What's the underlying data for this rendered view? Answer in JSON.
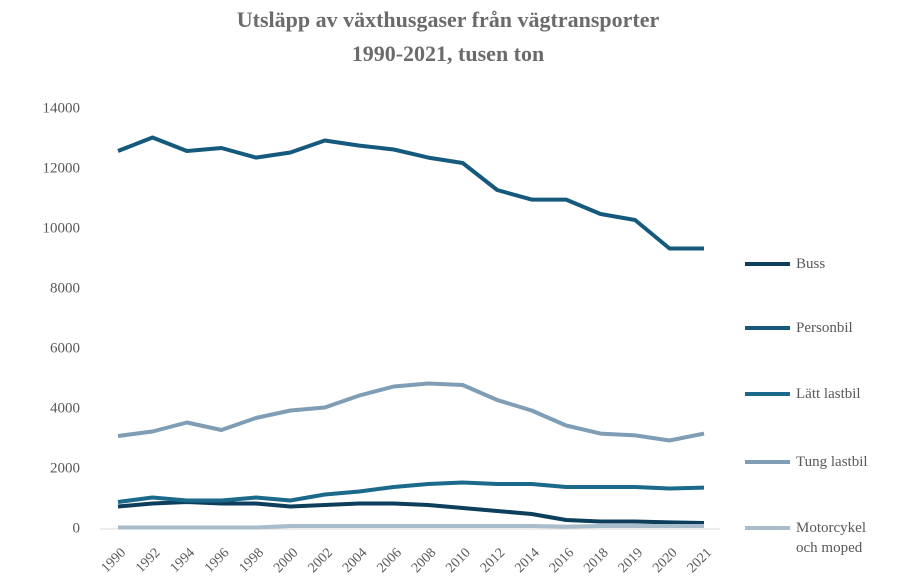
{
  "chart_data": {
    "type": "line",
    "title": "Utsläpp av växthusgaser från vägtransporter",
    "subtitle": "1990-2021, tusen ton",
    "categories": [
      "1990",
      "1992",
      "1994",
      "1996",
      "1998",
      "2000",
      "2002",
      "2004",
      "2006",
      "2008",
      "2010",
      "2012",
      "2014",
      "2016",
      "2018",
      "2019",
      "2020",
      "2021"
    ],
    "series": [
      {
        "name": "Buss",
        "color": "#0d3f5c",
        "values": [
          750,
          850,
          900,
          850,
          850,
          750,
          800,
          850,
          850,
          800,
          700,
          600,
          500,
          300,
          250,
          250,
          220,
          200
        ]
      },
      {
        "name": "Personbil",
        "color": "#155a7c",
        "values": [
          12600,
          13050,
          12600,
          12700,
          12380,
          12550,
          12950,
          12780,
          12650,
          12380,
          12200,
          11300,
          10980,
          10980,
          10500,
          10300,
          9350,
          9350
        ]
      },
      {
        "name": "Lätt lastbil",
        "color": "#1b6a8c",
        "values": [
          900,
          1050,
          950,
          950,
          1050,
          950,
          1150,
          1250,
          1400,
          1500,
          1550,
          1500,
          1500,
          1400,
          1400,
          1400,
          1350,
          1380
        ]
      },
      {
        "name": "Tung lastbil",
        "color": "#7f9db5",
        "values": [
          3100,
          3250,
          3550,
          3300,
          3700,
          3950,
          4050,
          4450,
          4750,
          4850,
          4800,
          4300,
          3950,
          3450,
          3180,
          3120,
          2950,
          3180
        ]
      },
      {
        "name": "Motorcykel och moped",
        "color": "#a9bccb",
        "values": [
          50,
          50,
          50,
          50,
          50,
          100,
          100,
          100,
          100,
          100,
          100,
          100,
          100,
          80,
          100,
          100,
          100,
          100
        ]
      }
    ],
    "ylim": [
      0,
      14000
    ],
    "yticks": [
      0,
      2000,
      4000,
      6000,
      8000,
      10000,
      12000,
      14000
    ],
    "grid": false,
    "legend": "right"
  }
}
